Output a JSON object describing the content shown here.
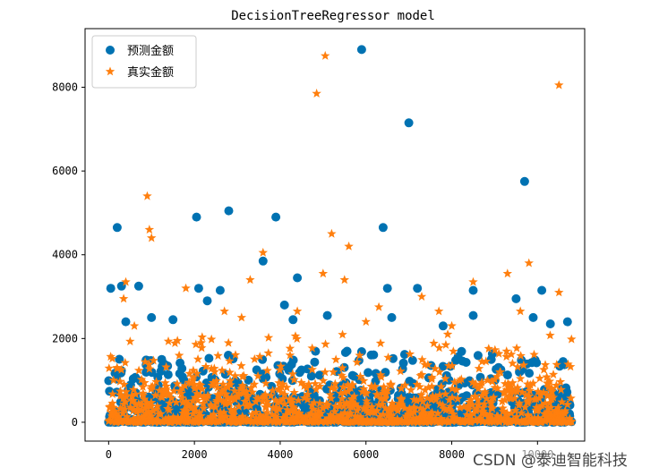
{
  "chart_data": {
    "type": "scatter",
    "title": "DecisionTreeRegressor model",
    "xlabel": "",
    "ylabel": "",
    "xlim": [
      -550,
      11100
    ],
    "ylim": [
      -450,
      9400
    ],
    "xticks": [
      0,
      2000,
      4000,
      6000,
      8000,
      10000
    ],
    "xtick_labels": [
      "0",
      "2000",
      "4000",
      "6000",
      "8000",
      "10000"
    ],
    "yticks": [
      0,
      2000,
      4000,
      6000,
      8000
    ],
    "ytick_labels": [
      "0",
      "2000",
      "4000",
      "6000",
      "8000"
    ],
    "grid": false,
    "legend_position": "top-left",
    "n_points": 10700,
    "series": [
      {
        "name": "预测金额",
        "marker": "circle",
        "color": "#0072B2",
        "outliers": [
          {
            "x": 200,
            "y": 4650
          },
          {
            "x": 2050,
            "y": 4900
          },
          {
            "x": 2800,
            "y": 5050
          },
          {
            "x": 3900,
            "y": 4900
          },
          {
            "x": 5900,
            "y": 8900
          },
          {
            "x": 7000,
            "y": 7150
          },
          {
            "x": 6400,
            "y": 4650
          },
          {
            "x": 9700,
            "y": 5750
          },
          {
            "x": 3600,
            "y": 3850
          },
          {
            "x": 4400,
            "y": 3450
          },
          {
            "x": 50,
            "y": 3200
          },
          {
            "x": 300,
            "y": 3250
          },
          {
            "x": 700,
            "y": 3250
          },
          {
            "x": 2100,
            "y": 3200
          },
          {
            "x": 2600,
            "y": 3150
          },
          {
            "x": 6500,
            "y": 3200
          },
          {
            "x": 7200,
            "y": 3200
          },
          {
            "x": 8500,
            "y": 3150
          },
          {
            "x": 9500,
            "y": 2950
          },
          {
            "x": 10100,
            "y": 3150
          },
          {
            "x": 400,
            "y": 2400
          },
          {
            "x": 1000,
            "y": 2500
          },
          {
            "x": 1500,
            "y": 2450
          },
          {
            "x": 2300,
            "y": 2900
          },
          {
            "x": 4100,
            "y": 2800
          },
          {
            "x": 4300,
            "y": 2450
          },
          {
            "x": 5100,
            "y": 2550
          },
          {
            "x": 6600,
            "y": 2500
          },
          {
            "x": 7800,
            "y": 2300
          },
          {
            "x": 8500,
            "y": 2550
          },
          {
            "x": 9900,
            "y": 2500
          },
          {
            "x": 10300,
            "y": 2350
          },
          {
            "x": 10700,
            "y": 2400
          }
        ],
        "bulk": {
          "ymax": 1700,
          "ydense": 700
        }
      },
      {
        "name": "真实金额",
        "marker": "star",
        "color": "#FF7F0E",
        "outliers": [
          {
            "x": 900,
            "y": 5400
          },
          {
            "x": 950,
            "y": 4600
          },
          {
            "x": 1000,
            "y": 4400
          },
          {
            "x": 4850,
            "y": 7850
          },
          {
            "x": 5050,
            "y": 8750
          },
          {
            "x": 10500,
            "y": 8050
          },
          {
            "x": 5200,
            "y": 4500
          },
          {
            "x": 5600,
            "y": 4200
          },
          {
            "x": 3600,
            "y": 4050
          },
          {
            "x": 3300,
            "y": 3400
          },
          {
            "x": 400,
            "y": 3350
          },
          {
            "x": 1800,
            "y": 3200
          },
          {
            "x": 5000,
            "y": 3550
          },
          {
            "x": 5500,
            "y": 3400
          },
          {
            "x": 7300,
            "y": 3000
          },
          {
            "x": 8500,
            "y": 3350
          },
          {
            "x": 9300,
            "y": 3550
          },
          {
            "x": 9800,
            "y": 3800
          },
          {
            "x": 10500,
            "y": 3100
          },
          {
            "x": 350,
            "y": 2950
          },
          {
            "x": 2700,
            "y": 2650
          },
          {
            "x": 4400,
            "y": 2650
          },
          {
            "x": 6300,
            "y": 2750
          },
          {
            "x": 7700,
            "y": 2650
          },
          {
            "x": 9600,
            "y": 2650
          },
          {
            "x": 600,
            "y": 2300
          },
          {
            "x": 3100,
            "y": 2500
          },
          {
            "x": 6000,
            "y": 2400
          },
          {
            "x": 8000,
            "y": 2300
          }
        ],
        "bulk": {
          "ymax": 2100,
          "ydense": 900
        }
      }
    ]
  },
  "watermark": "CSDN @泰迪智能科技"
}
